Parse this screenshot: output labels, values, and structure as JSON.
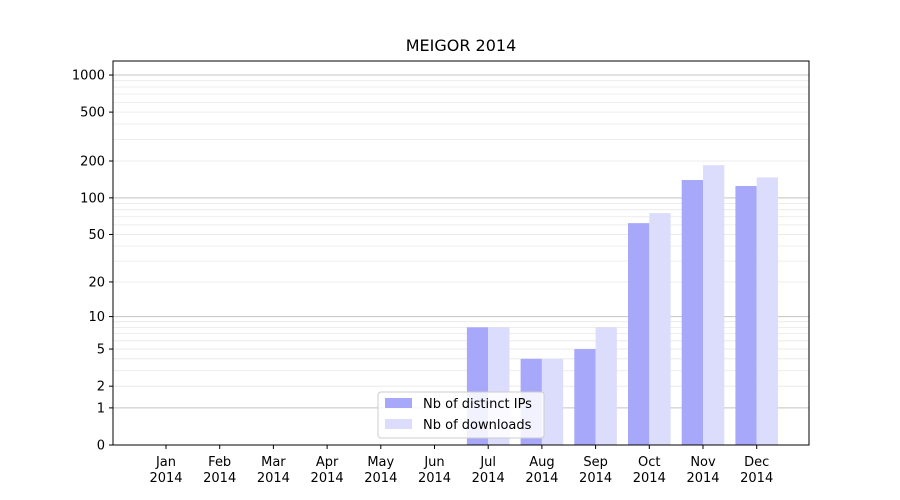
{
  "chart_data": {
    "type": "bar",
    "title": "MEIGOR 2014",
    "xlabel": "",
    "ylabel": "",
    "yscale": "log",
    "ylim": [
      0,
      1300
    ],
    "yticks": [
      0,
      1,
      2,
      5,
      10,
      20,
      50,
      100,
      200,
      500,
      1000
    ],
    "categories": [
      [
        "Jan",
        "2014"
      ],
      [
        "Feb",
        "2014"
      ],
      [
        "Mar",
        "2014"
      ],
      [
        "Apr",
        "2014"
      ],
      [
        "May",
        "2014"
      ],
      [
        "Jun",
        "2014"
      ],
      [
        "Jul",
        "2014"
      ],
      [
        "Aug",
        "2014"
      ],
      [
        "Sep",
        "2014"
      ],
      [
        "Oct",
        "2014"
      ],
      [
        "Nov",
        "2014"
      ],
      [
        "Dec",
        "2014"
      ]
    ],
    "series": [
      {
        "name": "Nb of distinct IPs",
        "color": "#a8a8fa",
        "values": [
          0,
          0,
          0,
          0,
          0,
          0,
          8,
          4,
          5,
          62,
          140,
          125
        ]
      },
      {
        "name": "Nb of downloads",
        "color": "#dcdcfc",
        "values": [
          0,
          0,
          0,
          0,
          0,
          0,
          8,
          4,
          8,
          75,
          185,
          147
        ]
      }
    ],
    "grid": true,
    "legend_position": "lower-center"
  }
}
